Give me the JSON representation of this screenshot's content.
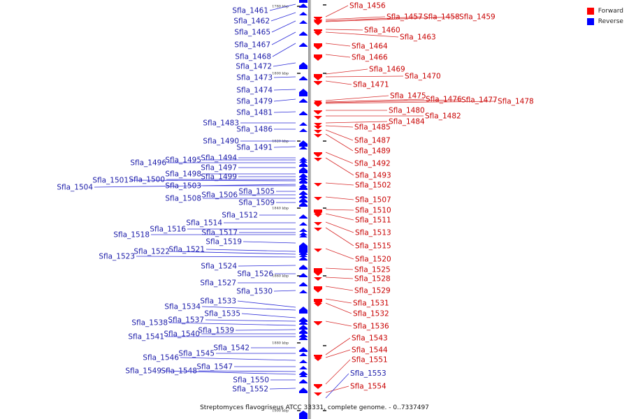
{
  "legend": {
    "forward_label": "Forward",
    "reverse_label": "Reverse",
    "forward_color": "#ff0000",
    "reverse_color": "#0000ff"
  },
  "caption": "Streptomyces flavogriseus ATCC 33331, complete genome. - 0..7337497",
  "tick_labels": [
    "1780 kbp",
    "1800 kbp",
    "1820 kbp",
    "1840 kbp",
    "1860 kbp",
    "1880 kbp",
    "1900 kbp"
  ],
  "reverse_genes": [
    "Sfla_1461",
    "Sfla_1462",
    "Sfla_1465",
    "Sfla_1467",
    "Sfla_1468",
    "Sfla_1472",
    "Sfla_1473",
    "Sfla_1474",
    "Sfla_1479",
    "Sfla_1481",
    "Sfla_1483",
    "Sfla_1486",
    "Sfla_1490",
    "Sfla_1491",
    "Sfla_1494",
    "Sfla_1495",
    "Sfla_1496",
    "Sfla_1497",
    "Sfla_1498",
    "Sfla_1499",
    "Sfla_1500",
    "Sfla_1501",
    "Sfla_1504",
    "Sfla_1503",
    "Sfla_1505",
    "Sfla_1506",
    "Sfla_1508",
    "Sfla_1509",
    "Sfla_1512",
    "Sfla_1514",
    "Sfla_1516",
    "Sfla_1517",
    "Sfla_1518",
    "Sfla_1519",
    "Sfla_1521",
    "Sfla_1522",
    "Sfla_1523",
    "Sfla_1524",
    "Sfla_1526",
    "Sfla_1527",
    "Sfla_1530",
    "Sfla_1533",
    "Sfla_1534",
    "Sfla_1535",
    "Sfla_1537",
    "Sfla_1538",
    "Sfla_1539",
    "Sfla_1540",
    "Sfla_1541",
    "Sfla_1542",
    "Sfla_1545",
    "Sfla_1546",
    "Sfla_1547",
    "Sfla_1548",
    "Sfla_1549",
    "Sfla_1550",
    "Sfla_1552",
    "Sfla_1553"
  ],
  "forward_genes": [
    "Sfla_1456",
    "Sfla_1457",
    "Sfla_1458",
    "Sfla_1459",
    "Sfla_1460",
    "Sfla_1463",
    "Sfla_1464",
    "Sfla_1466",
    "Sfla_1469",
    "Sfla_1470",
    "Sfla_1471",
    "Sfla_1475",
    "Sfla_1476",
    "Sfla_1477",
    "Sfla_1478",
    "Sfla_1480",
    "Sfla_1482",
    "Sfla_1484",
    "Sfla_1485",
    "Sfla_1487",
    "Sfla_1489",
    "Sfla_1492",
    "Sfla_1493",
    "Sfla_1502",
    "Sfla_1507",
    "Sfla_1510",
    "Sfla_1511",
    "Sfla_1513",
    "Sfla_1515",
    "Sfla_1520",
    "Sfla_1525",
    "Sfla_1528",
    "Sfla_1529",
    "Sfla_1531",
    "Sfla_1532",
    "Sfla_1536",
    "Sfla_1543",
    "Sfla_1544",
    "Sfla_1551",
    "Sfla_1554"
  ]
}
